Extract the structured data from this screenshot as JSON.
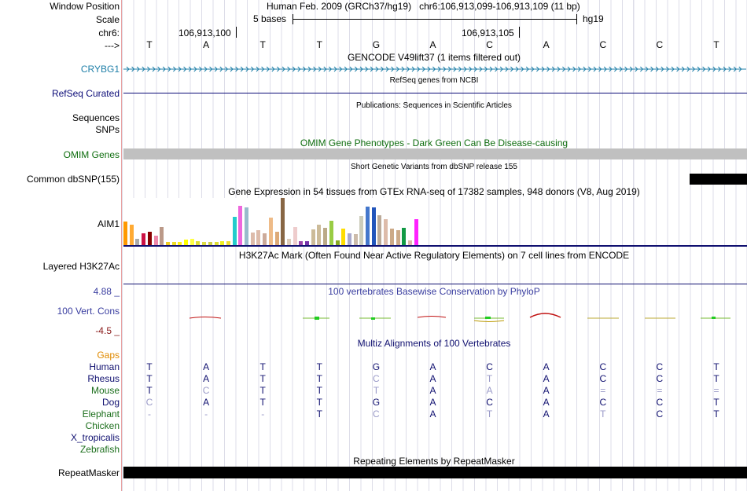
{
  "header": {
    "window_position_label": "Window Position",
    "window_position_value": "Human Feb. 2009 (GRCh37/hg19)   chr6:106,913,099-106,913,109 (11 bp)",
    "scale_label": "Scale",
    "scale_value": "5 bases",
    "scale_assembly": "hg19",
    "chrom_label": "chr6:",
    "coord_1": "106,913,100",
    "coord_2": "106,913,105",
    "strand_label": "--->"
  },
  "bases": [
    "T",
    "A",
    "T",
    "T",
    "G",
    "A",
    "C",
    "A",
    "C",
    "C",
    "T"
  ],
  "tracks": {
    "gencode": {
      "title": "GENCODE V49lift37 (1 items filtered out)",
      "label": "CRYBG1",
      "color": "#1f7fa8"
    },
    "refseq": {
      "title": "RefSeq genes from NCBI",
      "label": "RefSeq Curated",
      "color": "#0c0c78"
    },
    "publications": {
      "title": "Publications: Sequences in Scientific Articles",
      "label": "Sequences"
    },
    "snps_label": "SNPs",
    "omim": {
      "title": "OMIM Gene Phenotypes - Dark Green Can Be Disease-causing",
      "label": "OMIM Genes",
      "color": "#0f6e0f"
    },
    "dbsnp": {
      "title": "Short Genetic Variants from dbSNP release 155",
      "label": "Common dbSNP(155)"
    },
    "gtex": {
      "title": "Gene Expression in 54 tissues from GTEx RNA-seq of 17382 samples, 948 donors (V8, Aug 2019)",
      "label": "AIM1"
    },
    "h3k27ac": {
      "title": "H3K27Ac Mark (Often Found Near Active Regulatory Elements) on 7 cell lines from ENCODE",
      "label": "Layered H3K27Ac"
    },
    "phylop": {
      "title": "100 vertebrates Basewise Conservation by PhyloP",
      "label": "100 Vert. Cons",
      "max": "4.88 _",
      "min": "-4.5 _",
      "color": "#3a3ea0"
    },
    "multiz": {
      "title": "Multiz Alignments of 100 Vertebrates",
      "gaps_label": "Gaps"
    },
    "repeatmasker": {
      "title": "Repeating Elements by RepeatMasker",
      "label": "RepeatMasker"
    }
  },
  "gtex_bars": [
    {
      "value": 30,
      "color": "#ff9900"
    },
    {
      "value": 26,
      "color": "#ffaa33"
    },
    {
      "value": 8,
      "color": "#aaaaaa"
    },
    {
      "value": 15,
      "color": "#cc1144"
    },
    {
      "value": 17,
      "color": "#880000"
    },
    {
      "value": 12,
      "color": "#ee88aa"
    },
    {
      "value": 23,
      "color": "#bb9988"
    },
    {
      "value": 4,
      "color": "#eecc22"
    },
    {
      "value": 4,
      "color": "#eedd22"
    },
    {
      "value": 4,
      "color": "#ffee11"
    },
    {
      "value": 7,
      "color": "#ffff00"
    },
    {
      "value": 8,
      "color": "#ffff44"
    },
    {
      "value": 5,
      "color": "#dddd33"
    },
    {
      "value": 4,
      "color": "#dddd44"
    },
    {
      "value": 4,
      "color": "#cccc44"
    },
    {
      "value": 4,
      "color": "#dddd33"
    },
    {
      "value": 5,
      "color": "#eeee22"
    },
    {
      "value": 5,
      "color": "#eedd33"
    },
    {
      "value": 36,
      "color": "#22cccc"
    },
    {
      "value": 50,
      "color": "#ee66dd"
    },
    {
      "value": 48,
      "color": "#99bbcc"
    },
    {
      "value": 16,
      "color": "#ddbbaa"
    },
    {
      "value": 19,
      "color": "#ddbbaa"
    },
    {
      "value": 15,
      "color": "#ccaa99"
    },
    {
      "value": 35,
      "color": "#eebb88"
    },
    {
      "value": 17,
      "color": "#ddaa77"
    },
    {
      "value": 60,
      "color": "#886644"
    },
    {
      "value": 8,
      "color": "#ddccbb"
    },
    {
      "value": 23,
      "color": "#eecccc"
    },
    {
      "value": 5,
      "color": "#9944aa"
    },
    {
      "value": 5,
      "color": "#7733aa"
    },
    {
      "value": 20,
      "color": "#ccbb99"
    },
    {
      "value": 26,
      "color": "#ccbb99"
    },
    {
      "value": 22,
      "color": "#bbaa88"
    },
    {
      "value": 31,
      "color": "#99cc44"
    },
    {
      "value": 6,
      "color": "#88aa22"
    },
    {
      "value": 21,
      "color": "#ffdd00"
    },
    {
      "value": 15,
      "color": "#aaaacc"
    },
    {
      "value": 14,
      "color": "#ccbbaa"
    },
    {
      "value": 37,
      "color": "#ccccbb"
    },
    {
      "value": 49,
      "color": "#4477cc"
    },
    {
      "value": 48,
      "color": "#2255bb"
    },
    {
      "value": 38,
      "color": "#bbaa99"
    },
    {
      "value": 33,
      "color": "#ddbbaa"
    },
    {
      "value": 21,
      "color": "#ccaa88"
    },
    {
      "value": 19,
      "color": "#ccaa88"
    },
    {
      "value": 22,
      "color": "#119944"
    },
    {
      "value": 6,
      "color": "#ddbbaa"
    },
    {
      "value": 33,
      "color": "#ff22ff"
    }
  ],
  "species": [
    {
      "name": "Human",
      "color": "#101070",
      "bases": [
        "T",
        "A",
        "T",
        "T",
        "G",
        "A",
        "C",
        "A",
        "C",
        "C",
        "T"
      ],
      "dim": [
        false,
        false,
        false,
        false,
        false,
        false,
        false,
        false,
        false,
        false,
        false
      ]
    },
    {
      "name": "Rhesus",
      "color": "#101070",
      "bases": [
        "T",
        "A",
        "T",
        "T",
        "C",
        "A",
        "T",
        "A",
        "C",
        "C",
        "T"
      ],
      "dim": [
        false,
        false,
        false,
        false,
        true,
        false,
        true,
        false,
        false,
        false,
        false
      ]
    },
    {
      "name": "Mouse",
      "color": "#1b6e1b",
      "bases": [
        "T",
        "C",
        "T",
        "T",
        "T",
        "A",
        "A",
        "A",
        "=",
        "=",
        "="
      ],
      "dim": [
        false,
        true,
        false,
        false,
        true,
        false,
        true,
        false,
        true,
        true,
        true
      ]
    },
    {
      "name": "Dog",
      "color": "#101070",
      "bases": [
        "C",
        "A",
        "T",
        "T",
        "G",
        "A",
        "C",
        "A",
        "C",
        "C",
        "T"
      ],
      "dim": [
        true,
        false,
        false,
        false,
        false,
        false,
        false,
        false,
        false,
        false,
        false
      ]
    },
    {
      "name": "Elephant",
      "color": "#1b6e1b",
      "bases": [
        "-",
        "-",
        "-",
        "T",
        "C",
        "A",
        "T",
        "A",
        "T",
        "C",
        "T"
      ],
      "dim": [
        true,
        true,
        true,
        false,
        true,
        false,
        true,
        false,
        true,
        false,
        false
      ]
    },
    {
      "name": "Chicken",
      "color": "#1b6e1b",
      "bases": [
        "",
        "",
        "",
        "",
        "",
        "",
        "",
        "",
        "",
        "",
        ""
      ],
      "dim": [
        false,
        false,
        false,
        false,
        false,
        false,
        false,
        false,
        false,
        false,
        false
      ]
    },
    {
      "name": "X_tropicalis",
      "color": "#101070",
      "bases": [
        "",
        "",
        "",
        "",
        "",
        "",
        "",
        "",
        "",
        "",
        ""
      ],
      "dim": [
        false,
        false,
        false,
        false,
        false,
        false,
        false,
        false,
        false,
        false,
        false
      ]
    },
    {
      "name": "Zebrafish",
      "color": "#1b6e1b",
      "bases": [
        "",
        "",
        "",
        "",
        "",
        "",
        "",
        "",
        "",
        "",
        ""
      ],
      "dim": [
        false,
        false,
        false,
        false,
        false,
        false,
        false,
        false,
        false,
        false,
        false
      ]
    }
  ]
}
